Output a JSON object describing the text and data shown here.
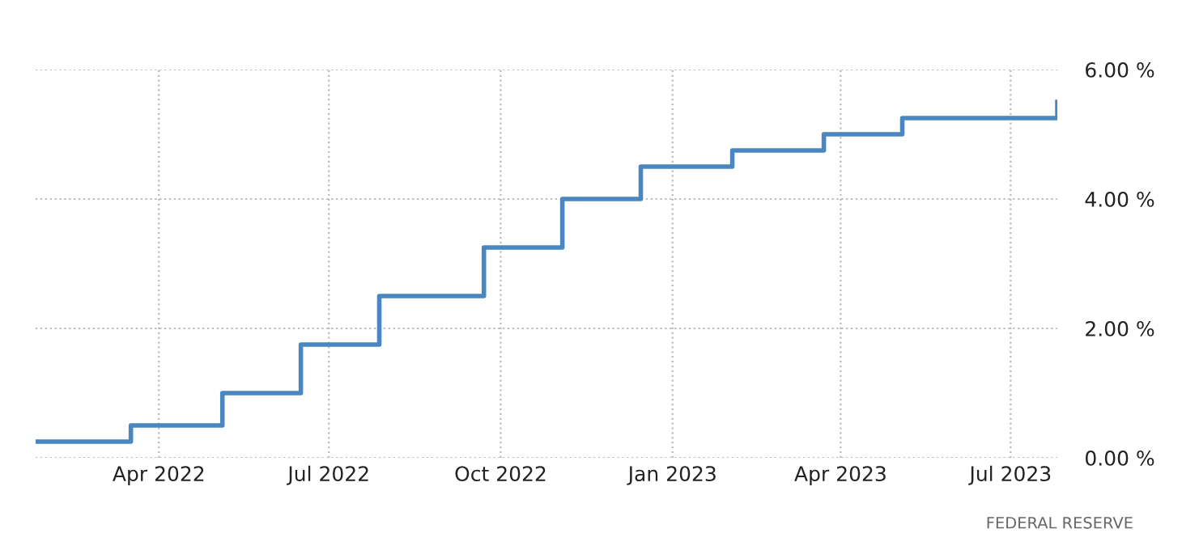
{
  "chart_data": {
    "type": "step",
    "x": [
      "2022-01-25",
      "2022-03-17",
      "2022-05-05",
      "2022-06-16",
      "2022-07-28",
      "2022-09-22",
      "2022-11-03",
      "2022-12-15",
      "2023-02-02",
      "2023-03-23",
      "2023-05-04",
      "2023-07-26"
    ],
    "series": [
      {
        "color": "#4a86c0",
        "values": [
          0.25,
          0.5,
          1.0,
          1.75,
          2.5,
          3.25,
          4.0,
          4.5,
          4.75,
          5.0,
          5.25,
          5.5
        ]
      }
    ],
    "xlim": [
      "2022-01-25",
      "2023-07-26"
    ],
    "xticks": [
      {
        "value": "2022-04-01",
        "label": "Apr 2022"
      },
      {
        "value": "2022-07-01",
        "label": "Jul 2022"
      },
      {
        "value": "2022-10-01",
        "label": "Oct 2022"
      },
      {
        "value": "2023-01-01",
        "label": "Jan 2023"
      },
      {
        "value": "2023-04-01",
        "label": "Apr 2023"
      },
      {
        "value": "2023-07-01",
        "label": "Jul 2023"
      }
    ],
    "ylim": [
      0,
      6
    ],
    "yticks": [
      {
        "value": 0,
        "label": "0.00 %"
      },
      {
        "value": 2,
        "label": "2.00 %"
      },
      {
        "value": 4,
        "label": "4.00 %"
      },
      {
        "value": 6,
        "label": "6.00 %"
      }
    ],
    "grid": true,
    "annotations": [
      "FEDERAL RESERVE"
    ]
  }
}
